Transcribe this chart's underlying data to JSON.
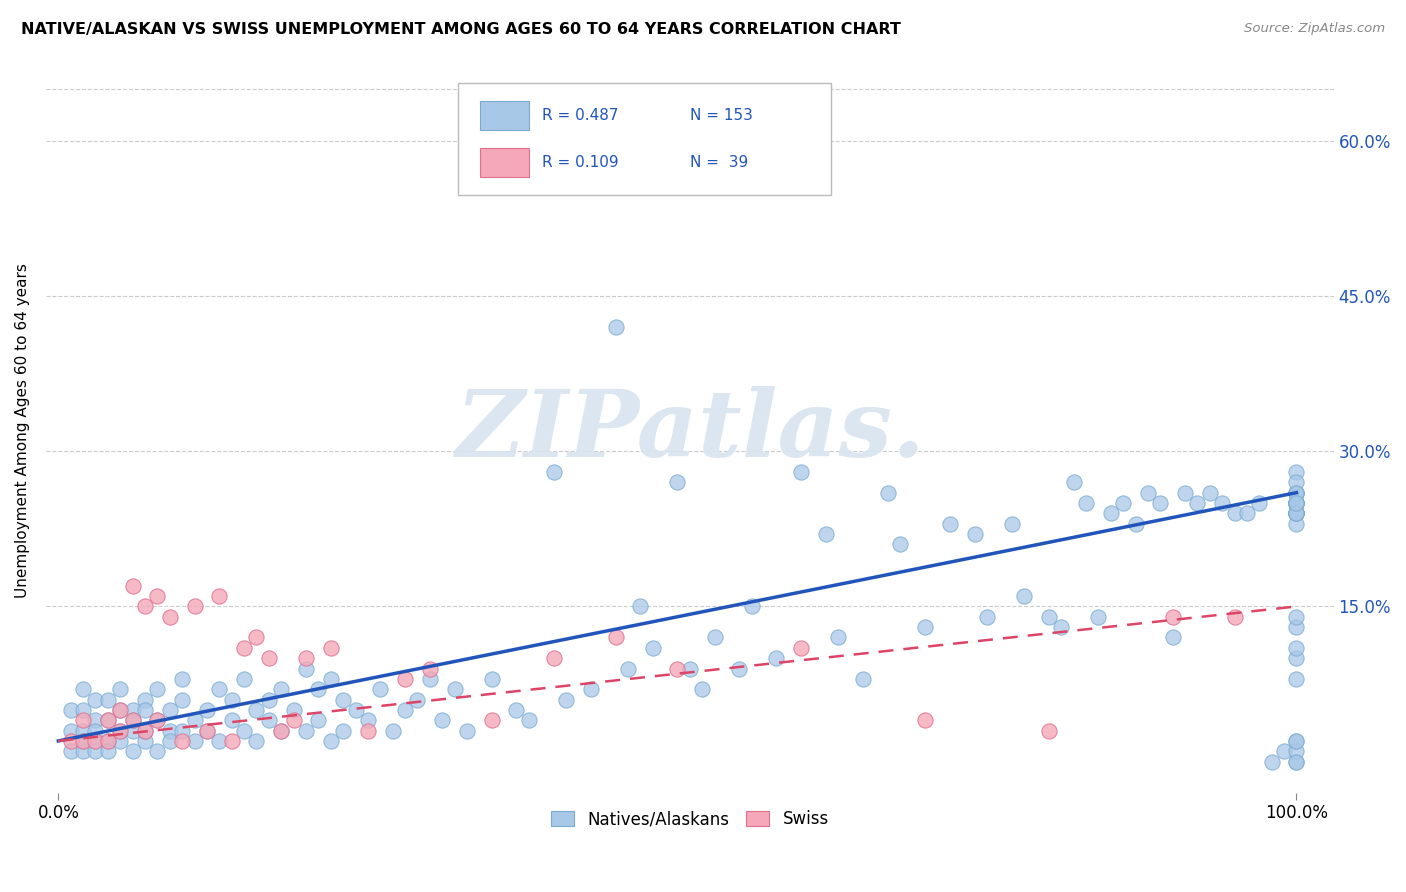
{
  "title": "NATIVE/ALASKAN VS SWISS UNEMPLOYMENT AMONG AGES 60 TO 64 YEARS CORRELATION CHART",
  "source": "Source: ZipAtlas.com",
  "ylabel_label": "Unemployment Among Ages 60 to 64 years",
  "legend_label1": "Natives/Alaskans",
  "legend_label2": "Swiss",
  "R1": 0.487,
  "N1": 153,
  "R2": 0.109,
  "N2": 39,
  "blue_color": "#a8c8e8",
  "blue_edge": "#7aaad0",
  "pink_color": "#f4a8b8",
  "pink_edge": "#e07090",
  "line_blue": "#2255bb",
  "line_pink": "#dd4466",
  "watermark_color": "#d8e4f0",
  "watermark_text": "ZIPatlas.",
  "xlim": [
    0,
    100
  ],
  "ylim": [
    0,
    65
  ],
  "yticks": [
    15,
    30,
    45,
    60
  ],
  "ytick_labels": [
    "15.0%",
    "30.0%",
    "45.0%",
    "60.0%"
  ],
  "xticks": [
    0,
    100
  ],
  "xtick_labels": [
    "0.0%",
    "100.0%"
  ],
  "blue_line_start_y": 2,
  "blue_line_end_y": 26,
  "pink_line_start_y": 2,
  "pink_line_end_y": 15,
  "blue_x": [
    1,
    1,
    1,
    2,
    2,
    2,
    2,
    2,
    3,
    3,
    3,
    3,
    3,
    4,
    4,
    4,
    4,
    5,
    5,
    5,
    5,
    6,
    6,
    6,
    6,
    7,
    7,
    7,
    7,
    8,
    8,
    8,
    9,
    9,
    9,
    10,
    10,
    10,
    11,
    11,
    12,
    12,
    13,
    13,
    14,
    14,
    15,
    15,
    16,
    16,
    17,
    17,
    18,
    18,
    19,
    20,
    20,
    21,
    21,
    22,
    22,
    23,
    23,
    24,
    25,
    26,
    27,
    28,
    29,
    30,
    31,
    32,
    33,
    35,
    37,
    38,
    40,
    41,
    43,
    45,
    46,
    47,
    48,
    50,
    51,
    52,
    53,
    55,
    56,
    58,
    60,
    62,
    63,
    65,
    67,
    68,
    70,
    72,
    74,
    75,
    77,
    78,
    80,
    81,
    82,
    83,
    84,
    85,
    86,
    87,
    88,
    89,
    90,
    91,
    92,
    93,
    94,
    95,
    96,
    97,
    98,
    99,
    100,
    100,
    100,
    100,
    100,
    100,
    100,
    100,
    100,
    100,
    100,
    100,
    100,
    100,
    100,
    100,
    100,
    100,
    100,
    100,
    100,
    100,
    100,
    100,
    100,
    100,
    100,
    100,
    100,
    100,
    100
  ],
  "blue_y": [
    1,
    3,
    5,
    1,
    3,
    5,
    7,
    2,
    2,
    4,
    6,
    1,
    3,
    2,
    4,
    1,
    6,
    3,
    5,
    2,
    7,
    3,
    5,
    1,
    4,
    2,
    6,
    3,
    5,
    4,
    1,
    7,
    3,
    5,
    2,
    6,
    3,
    8,
    4,
    2,
    5,
    3,
    7,
    2,
    4,
    6,
    3,
    8,
    5,
    2,
    4,
    6,
    3,
    7,
    5,
    3,
    9,
    4,
    7,
    2,
    8,
    3,
    6,
    5,
    4,
    7,
    3,
    5,
    6,
    8,
    4,
    7,
    3,
    8,
    5,
    4,
    28,
    6,
    7,
    42,
    9,
    15,
    11,
    27,
    9,
    7,
    12,
    9,
    15,
    10,
    28,
    22,
    12,
    8,
    26,
    21,
    13,
    23,
    22,
    14,
    23,
    16,
    14,
    13,
    27,
    25,
    14,
    24,
    25,
    23,
    26,
    25,
    12,
    26,
    25,
    26,
    25,
    24,
    24,
    25,
    0,
    1,
    0,
    2,
    24,
    25,
    1,
    25,
    0,
    28,
    2,
    24,
    25,
    13,
    26,
    14,
    24,
    25,
    10,
    11,
    24,
    26,
    24,
    25,
    23,
    26,
    27,
    24,
    8,
    25,
    26,
    24,
    25
  ],
  "pink_x": [
    1,
    2,
    2,
    3,
    4,
    4,
    5,
    5,
    6,
    6,
    7,
    7,
    8,
    8,
    9,
    10,
    11,
    12,
    13,
    14,
    15,
    16,
    17,
    18,
    19,
    20,
    22,
    25,
    28,
    30,
    35,
    40,
    45,
    50,
    60,
    70,
    80,
    90,
    95
  ],
  "pink_y": [
    2,
    2,
    4,
    2,
    2,
    4,
    3,
    5,
    17,
    4,
    3,
    15,
    16,
    4,
    14,
    2,
    15,
    3,
    16,
    2,
    11,
    12,
    10,
    3,
    4,
    10,
    11,
    3,
    8,
    9,
    4,
    10,
    12,
    9,
    11,
    4,
    3,
    14,
    14
  ]
}
